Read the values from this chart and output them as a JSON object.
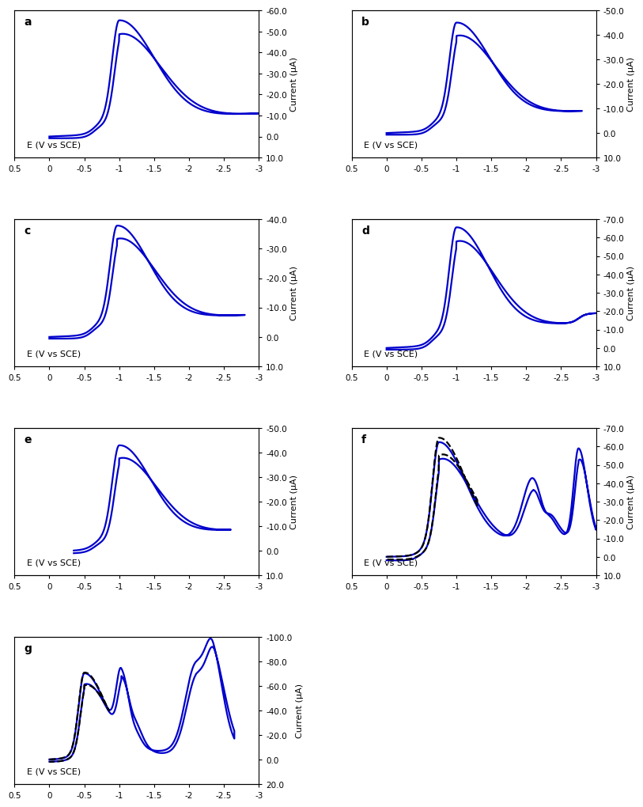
{
  "panels": [
    {
      "label": "a",
      "ylim": [
        10.0,
        -60.0
      ],
      "yticks": [
        10.0,
        0.0,
        -10.0,
        -20.0,
        -30.0,
        -40.0,
        -50.0,
        -60.0
      ],
      "xlim": [
        0.5,
        -3.0
      ],
      "xticks": [
        0.5,
        0.0,
        -0.5,
        -1.0,
        -1.5,
        -2.0,
        -2.5,
        -3.0
      ]
    },
    {
      "label": "b",
      "ylim": [
        10.0,
        -50.0
      ],
      "yticks": [
        10.0,
        0.0,
        -10.0,
        -20.0,
        -30.0,
        -40.0,
        -50.0
      ],
      "xlim": [
        0.5,
        -3.0
      ],
      "xticks": [
        0.5,
        0.0,
        -0.5,
        -1.0,
        -1.5,
        -2.0,
        -2.5,
        -3.0
      ]
    },
    {
      "label": "c",
      "ylim": [
        10.0,
        -40.0
      ],
      "yticks": [
        10.0,
        0.0,
        -10.0,
        -20.0,
        -30.0,
        -40.0
      ],
      "xlim": [
        0.5,
        -3.0
      ],
      "xticks": [
        0.5,
        0.0,
        -0.5,
        -1.0,
        -1.5,
        -2.0,
        -2.5,
        -3.0
      ]
    },
    {
      "label": "d",
      "ylim": [
        10.0,
        -70.0
      ],
      "yticks": [
        10.0,
        0.0,
        -10.0,
        -20.0,
        -30.0,
        -40.0,
        -50.0,
        -60.0,
        -70.0
      ],
      "xlim": [
        0.5,
        -3.0
      ],
      "xticks": [
        0.5,
        0.0,
        -0.5,
        -1.0,
        -1.5,
        -2.0,
        -2.5,
        -3.0
      ]
    },
    {
      "label": "e",
      "ylim": [
        10.0,
        -50.0
      ],
      "yticks": [
        10.0,
        0.0,
        -10.0,
        -20.0,
        -30.0,
        -40.0,
        -50.0
      ],
      "xlim": [
        0.5,
        -3.0
      ],
      "xticks": [
        0.5,
        0.0,
        -0.5,
        -1.0,
        -1.5,
        -2.0,
        -2.5,
        -3.0
      ]
    },
    {
      "label": "f",
      "ylim": [
        10.0,
        -70.0
      ],
      "yticks": [
        10.0,
        0.0,
        -10.0,
        -20.0,
        -30.0,
        -40.0,
        -50.0,
        -60.0,
        -70.0
      ],
      "xlim": [
        0.5,
        -3.0
      ],
      "xticks": [
        0.5,
        0.0,
        -0.5,
        -1.0,
        -1.5,
        -2.0,
        -2.5,
        -3.0
      ]
    },
    {
      "label": "g",
      "ylim": [
        20.0,
        -100.0
      ],
      "yticks": [
        20.0,
        0.0,
        -20.0,
        -40.0,
        -60.0,
        -80.0,
        -100.0
      ],
      "xlim": [
        0.5,
        -3.0
      ],
      "xticks": [
        0.5,
        0.0,
        -0.5,
        -1.0,
        -1.5,
        -2.0,
        -2.5,
        -3.0
      ]
    }
  ],
  "blue_color": "#0000CC",
  "black_color": "#000000",
  "line_width": 1.6,
  "xlabel": "E (V vs SCE)",
  "ylabel": "Current (μA)",
  "background_color": "#ffffff",
  "font_size_label": 8,
  "font_size_tick": 7.5,
  "font_size_panel_label": 10
}
